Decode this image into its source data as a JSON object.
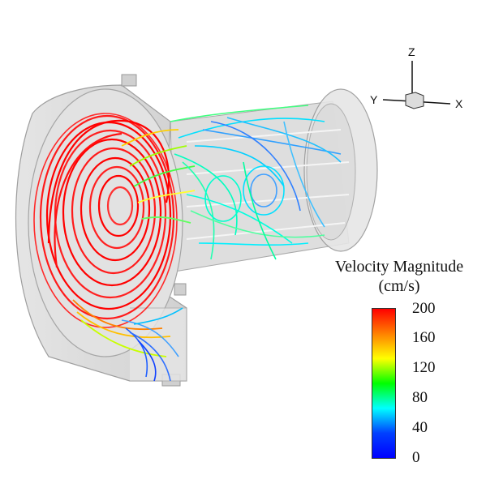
{
  "legend": {
    "title_line1": "Velocity Magnitude",
    "title_line2": "(cm/s)",
    "ticks": [
      "200",
      "160",
      "120",
      "80",
      "40",
      "0"
    ],
    "colors": [
      "#ff0000",
      "#ff8000",
      "#ffff00",
      "#00ff00",
      "#00ffff",
      "#0040ff",
      "#0000ff"
    ]
  },
  "axes": {
    "x": "X",
    "y": "Y",
    "z": "Z"
  }
}
